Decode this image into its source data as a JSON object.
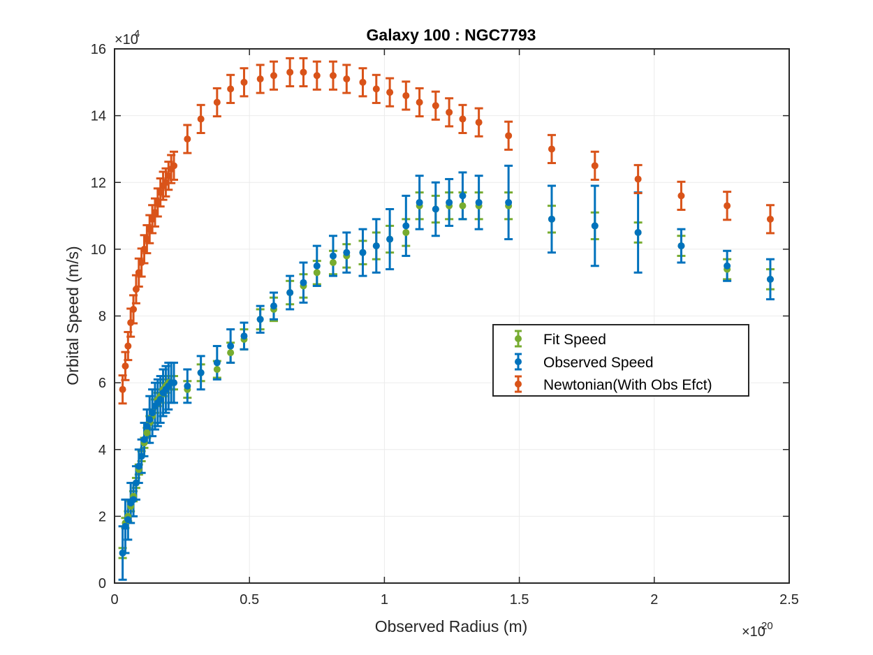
{
  "chart_data": {
    "type": "scatter",
    "title": "Galaxy 100 : NGC7793",
    "xlabel": "Observed Radius (m)",
    "ylabel": "Orbital Speed (m/s)",
    "x_exponent_base": "×10",
    "x_exponent_power": "20",
    "y_exponent_base": "×10",
    "y_exponent_power": "4",
    "x_scale": 1e+20,
    "y_scale": 10000,
    "xlim": [
      0,
      2.5
    ],
    "ylim": [
      0,
      16
    ],
    "x_ticks": [
      0,
      0.5,
      1,
      1.5,
      2,
      2.5
    ],
    "x_tick_labels": [
      "0",
      "0.5",
      "1",
      "1.5",
      "2",
      "2.5"
    ],
    "y_ticks": [
      0,
      2,
      4,
      6,
      8,
      10,
      12,
      14,
      16
    ],
    "y_tick_labels": [
      "0",
      "2",
      "4",
      "6",
      "8",
      "10",
      "12",
      "14",
      "16"
    ],
    "grid": true,
    "legend_position": "center-right",
    "series": [
      {
        "name": "Fit Speed",
        "color": "#77ac30",
        "x": [
          0.03,
          0.04,
          0.05,
          0.06,
          0.07,
          0.08,
          0.09,
          0.1,
          0.11,
          0.12,
          0.13,
          0.14,
          0.15,
          0.16,
          0.17,
          0.18,
          0.19,
          0.2,
          0.21,
          0.22,
          0.27,
          0.32,
          0.38,
          0.43,
          0.48,
          0.54,
          0.59,
          0.65,
          0.7,
          0.75,
          0.81,
          0.86,
          0.92,
          0.97,
          1.02,
          1.08,
          1.13,
          1.19,
          1.24,
          1.29,
          1.35,
          1.46,
          1.62,
          1.78,
          1.94,
          2.1,
          2.27,
          2.43
        ],
        "y": [
          0.9,
          1.8,
          2.0,
          2.3,
          2.6,
          3.0,
          3.4,
          3.8,
          4.2,
          4.5,
          4.8,
          5.0,
          5.3,
          5.5,
          5.6,
          5.8,
          5.9,
          6.0,
          6.0,
          6.0,
          5.8,
          6.3,
          6.4,
          6.9,
          7.3,
          7.9,
          8.2,
          8.7,
          8.9,
          9.3,
          9.6,
          9.8,
          9.9,
          10.1,
          10.3,
          10.5,
          11.3,
          11.2,
          11.3,
          11.3,
          11.3,
          11.3,
          10.9,
          10.7,
          10.5,
          10.1,
          9.4,
          9.1
        ],
        "err": [
          0.15,
          0.15,
          0.15,
          0.15,
          0.15,
          0.15,
          0.15,
          0.15,
          0.15,
          0.15,
          0.2,
          0.2,
          0.2,
          0.2,
          0.2,
          0.2,
          0.2,
          0.2,
          0.2,
          0.2,
          0.25,
          0.25,
          0.25,
          0.3,
          0.3,
          0.3,
          0.35,
          0.35,
          0.35,
          0.35,
          0.35,
          0.35,
          0.35,
          0.4,
          0.4,
          0.4,
          0.4,
          0.4,
          0.4,
          0.4,
          0.4,
          0.4,
          0.4,
          0.4,
          0.3,
          0.3,
          0.3,
          0.3
        ]
      },
      {
        "name": "Observed Speed",
        "color": "#0072bd",
        "x": [
          0.03,
          0.04,
          0.05,
          0.06,
          0.07,
          0.08,
          0.09,
          0.1,
          0.11,
          0.12,
          0.13,
          0.14,
          0.15,
          0.16,
          0.17,
          0.18,
          0.19,
          0.2,
          0.21,
          0.22,
          0.27,
          0.32,
          0.38,
          0.43,
          0.48,
          0.54,
          0.59,
          0.65,
          0.7,
          0.75,
          0.81,
          0.86,
          0.92,
          0.97,
          1.02,
          1.08,
          1.13,
          1.19,
          1.24,
          1.29,
          1.35,
          1.46,
          1.62,
          1.78,
          1.94,
          2.1,
          2.27,
          2.43
        ],
        "y": [
          0.9,
          1.7,
          1.9,
          2.4,
          2.5,
          3.0,
          3.5,
          3.8,
          4.3,
          4.7,
          4.9,
          5.1,
          5.3,
          5.4,
          5.5,
          5.7,
          5.8,
          5.9,
          6.0,
          6.0,
          5.9,
          6.3,
          6.6,
          7.1,
          7.4,
          7.9,
          8.3,
          8.7,
          9.0,
          9.5,
          9.8,
          9.9,
          9.9,
          10.1,
          10.3,
          10.7,
          11.4,
          11.2,
          11.4,
          11.6,
          11.4,
          11.4,
          10.9,
          10.7,
          10.5,
          10.1,
          9.5,
          9.1
        ],
        "err": [
          0.8,
          0.8,
          0.6,
          0.6,
          0.5,
          0.5,
          0.5,
          0.5,
          0.5,
          0.5,
          0.7,
          0.7,
          0.7,
          0.7,
          0.7,
          0.7,
          0.7,
          0.7,
          0.6,
          0.6,
          0.5,
          0.5,
          0.5,
          0.5,
          0.4,
          0.4,
          0.4,
          0.5,
          0.6,
          0.6,
          0.6,
          0.6,
          0.7,
          0.8,
          0.9,
          0.9,
          0.8,
          0.8,
          0.7,
          0.7,
          0.8,
          1.1,
          1.0,
          1.2,
          1.2,
          0.5,
          0.45,
          0.6
        ]
      },
      {
        "name": "Newtonian(With Obs Efct)",
        "color": "#d95319",
        "x": [
          0.03,
          0.04,
          0.05,
          0.06,
          0.07,
          0.08,
          0.09,
          0.1,
          0.11,
          0.12,
          0.13,
          0.14,
          0.15,
          0.16,
          0.17,
          0.18,
          0.19,
          0.2,
          0.21,
          0.22,
          0.27,
          0.32,
          0.38,
          0.43,
          0.48,
          0.54,
          0.59,
          0.65,
          0.7,
          0.75,
          0.81,
          0.86,
          0.92,
          0.97,
          1.02,
          1.08,
          1.13,
          1.19,
          1.24,
          1.29,
          1.35,
          1.46,
          1.62,
          1.78,
          1.94,
          2.1,
          2.27,
          2.43
        ],
        "y": [
          5.8,
          6.5,
          7.1,
          7.8,
          8.2,
          8.8,
          9.3,
          9.6,
          10.0,
          10.3,
          10.6,
          10.9,
          11.1,
          11.4,
          11.7,
          11.9,
          12.0,
          12.2,
          12.4,
          12.5,
          13.3,
          13.9,
          14.4,
          14.8,
          15.0,
          15.1,
          15.2,
          15.3,
          15.3,
          15.2,
          15.2,
          15.1,
          15.0,
          14.8,
          14.7,
          14.6,
          14.4,
          14.3,
          14.1,
          13.9,
          13.8,
          13.4,
          13.0,
          12.5,
          12.1,
          11.6,
          11.3,
          10.9
        ]
      }
    ]
  }
}
